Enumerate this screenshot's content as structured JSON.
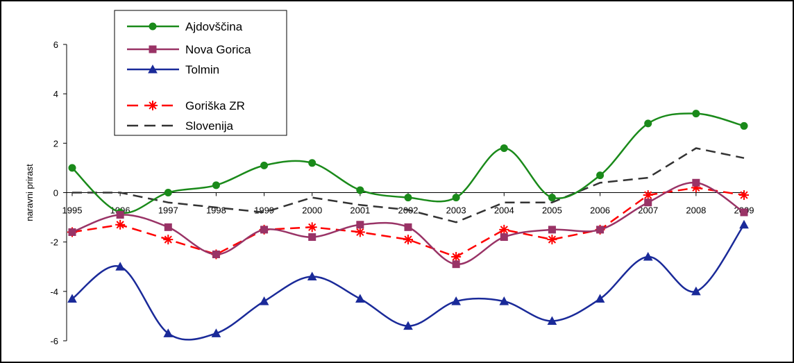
{
  "chart_data": {
    "type": "line",
    "title": "",
    "xlabel": "",
    "ylabel": "naravni prirast",
    "x": [
      "1995",
      "1996",
      "1997",
      "1998",
      "1999",
      "2000",
      "2001",
      "2002",
      "2003",
      "2004",
      "2005",
      "2006",
      "2007",
      "2008",
      "2009"
    ],
    "ylim": [
      -6,
      6
    ],
    "yticks": [
      6,
      4,
      2,
      0,
      -2,
      -4,
      -6
    ],
    "ytick_labels": [
      "6",
      "4",
      "2",
      "0",
      "-2",
      "-4",
      "-6"
    ],
    "grid": false,
    "legend_position": "top-left",
    "series": [
      {
        "name": "Ajdovščina",
        "color": "#1a8a1a",
        "marker": "circle",
        "dash": "solid",
        "smooth": true,
        "values": [
          1.0,
          -0.8,
          0.0,
          0.3,
          1.1,
          1.2,
          0.1,
          -0.2,
          -0.2,
          1.8,
          -0.2,
          0.7,
          2.8,
          3.2,
          2.7
        ]
      },
      {
        "name": "Nova Gorica",
        "color": "#993366",
        "marker": "square",
        "dash": "solid",
        "smooth": true,
        "values": [
          -1.6,
          -0.9,
          -1.4,
          -2.5,
          -1.5,
          -1.8,
          -1.3,
          -1.4,
          -2.9,
          -1.8,
          -1.5,
          -1.5,
          -0.4,
          0.4,
          -0.8
        ]
      },
      {
        "name": "Tolmin",
        "color": "#1a2a99",
        "marker": "triangle",
        "dash": "solid",
        "smooth": true,
        "values": [
          -4.3,
          -3.0,
          -5.7,
          -5.7,
          -4.4,
          -3.4,
          -4.3,
          -5.4,
          -4.4,
          -4.4,
          -5.2,
          -4.3,
          -2.6,
          -4.0,
          -1.3
        ]
      },
      {
        "name": "Goriška ZR",
        "color": "#ff0000",
        "marker": "star",
        "dash": "dashed",
        "smooth": false,
        "values": [
          -1.6,
          -1.3,
          -1.9,
          -2.5,
          -1.5,
          -1.4,
          -1.6,
          -1.9,
          -2.6,
          -1.5,
          -1.9,
          -1.5,
          -0.1,
          0.2,
          -0.1
        ]
      },
      {
        "name": "Slovenija",
        "color": "#333333",
        "marker": "none",
        "dash": "dashed",
        "smooth": false,
        "values": [
          0.0,
          0.0,
          -0.4,
          -0.6,
          -0.8,
          -0.2,
          -0.5,
          -0.7,
          -1.2,
          -0.4,
          -0.4,
          0.4,
          0.6,
          1.8,
          1.4
        ]
      }
    ]
  }
}
